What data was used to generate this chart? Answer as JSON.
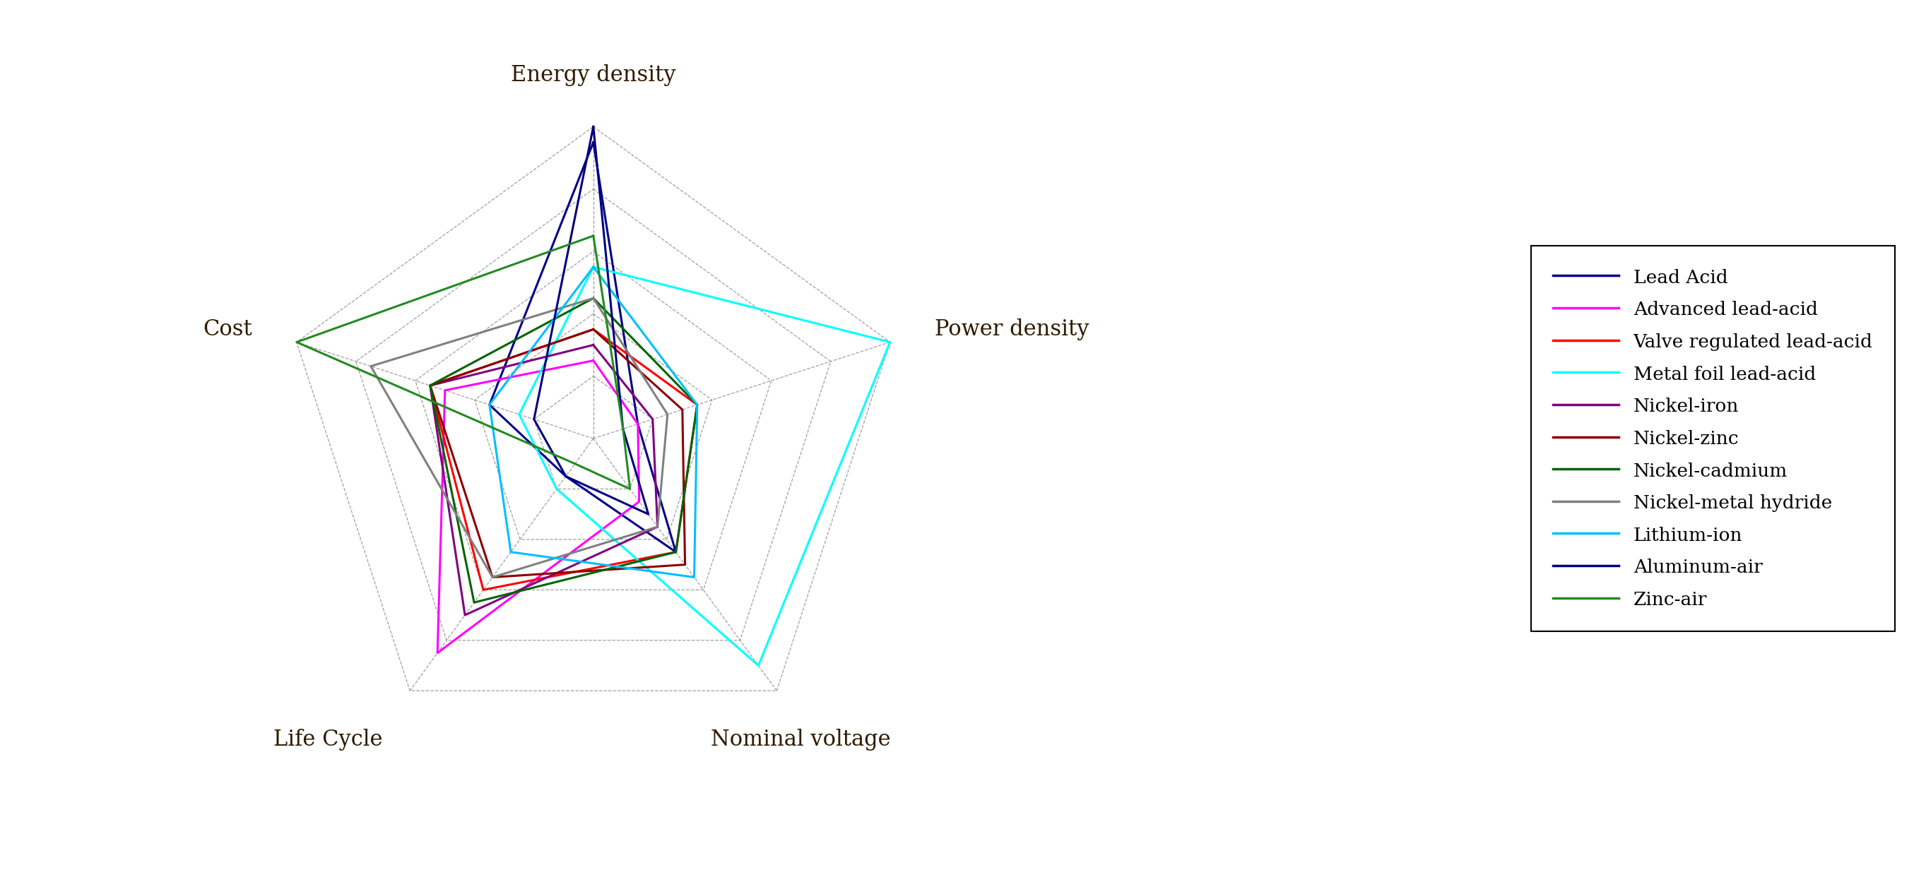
{
  "categories": [
    "Energy density",
    "Power density",
    "Nominal voltage",
    "Life Cycle",
    "Cost"
  ],
  "series": [
    {
      "name": "Lead Acid",
      "color": "#00008B",
      "values": [
        0.95,
        0.15,
        0.45,
        0.15,
        0.35
      ]
    },
    {
      "name": "Advanced lead-acid",
      "color": "#FF00FF",
      "values": [
        0.25,
        0.15,
        0.25,
        0.85,
        0.5
      ]
    },
    {
      "name": "Valve regulated lead-acid",
      "color": "#FF0000",
      "values": [
        0.35,
        0.35,
        0.45,
        0.6,
        0.55
      ]
    },
    {
      "name": "Metal foil lead-acid",
      "color": "#00FFFF",
      "values": [
        0.55,
        1.0,
        0.9,
        0.2,
        0.25
      ]
    },
    {
      "name": "Nickel-iron",
      "color": "#800080",
      "values": [
        0.3,
        0.2,
        0.35,
        0.7,
        0.55
      ]
    },
    {
      "name": "Nickel-zinc",
      "color": "#8B0000",
      "values": [
        0.35,
        0.3,
        0.5,
        0.55,
        0.55
      ]
    },
    {
      "name": "Nickel-cadmium",
      "color": "#006400",
      "values": [
        0.45,
        0.35,
        0.45,
        0.65,
        0.55
      ]
    },
    {
      "name": "Nickel-metal hydride",
      "color": "#808080",
      "values": [
        0.45,
        0.25,
        0.35,
        0.55,
        0.75
      ]
    },
    {
      "name": "Lithium-ion",
      "color": "#00BFFF",
      "values": [
        0.55,
        0.35,
        0.55,
        0.45,
        0.35
      ]
    },
    {
      "name": "Aluminum-air",
      "color": "#000080",
      "values": [
        1.0,
        0.1,
        0.3,
        0.15,
        0.2
      ]
    },
    {
      "name": "Zinc-air",
      "color": "#228B22",
      "values": [
        0.65,
        0.1,
        0.2,
        0.1,
        1.0
      ]
    }
  ],
  "num_levels": 5,
  "background_color": "#FFFFFF",
  "grid_color": "#888888",
  "label_fontsize": 22,
  "legend_fontsize": 19,
  "figsize": [
    27.09,
    12.42
  ]
}
